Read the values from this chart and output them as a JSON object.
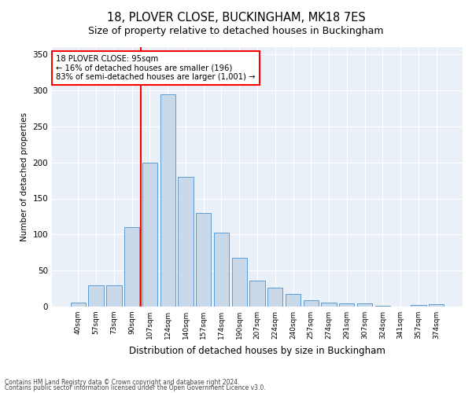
{
  "title": "18, PLOVER CLOSE, BUCKINGHAM, MK18 7ES",
  "subtitle": "Size of property relative to detached houses in Buckingham",
  "xlabel": "Distribution of detached houses by size in Buckingham",
  "ylabel": "Number of detached properties",
  "footnote1": "Contains HM Land Registry data © Crown copyright and database right 2024.",
  "footnote2": "Contains public sector information licensed under the Open Government Licence v3.0.",
  "bar_labels": [
    "40sqm",
    "57sqm",
    "73sqm",
    "90sqm",
    "107sqm",
    "124sqm",
    "140sqm",
    "157sqm",
    "174sqm",
    "190sqm",
    "207sqm",
    "224sqm",
    "240sqm",
    "257sqm",
    "274sqm",
    "291sqm",
    "307sqm",
    "324sqm",
    "341sqm",
    "357sqm",
    "374sqm"
  ],
  "bar_heights": [
    6,
    29,
    29,
    110,
    200,
    295,
    180,
    130,
    103,
    68,
    36,
    26,
    17,
    9,
    5,
    4,
    4,
    1,
    0,
    2,
    3
  ],
  "bar_color": "#c9d9ea",
  "bar_edge_color": "#5b9bd5",
  "annotation_title": "18 PLOVER CLOSE: 95sqm",
  "annotation_line1": "← 16% of detached houses are smaller (196)",
  "annotation_line2": "83% of semi-detached houses are larger (1,001) →",
  "ylim": [
    0,
    360
  ],
  "yticks": [
    0,
    50,
    100,
    150,
    200,
    250,
    300,
    350
  ],
  "plot_bg_color": "#eaf0f8",
  "title_fontsize": 10.5,
  "subtitle_fontsize": 9
}
